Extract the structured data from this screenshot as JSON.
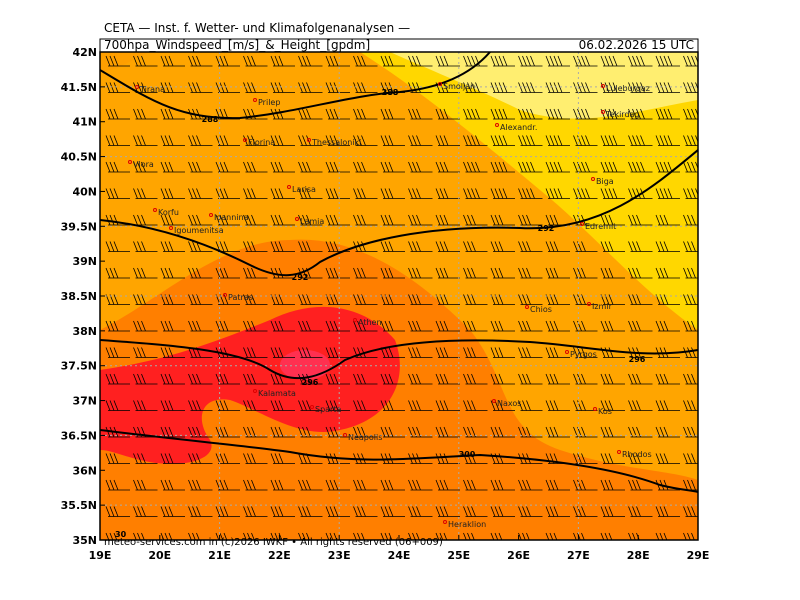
{
  "header": {
    "institute": "CETA — Inst. f. Wetter- und Klimafolgenanalysen —",
    "product": "700hpa_Windspeed_[m/s]_&_Height_[gpdm]",
    "datetime": "06.02.2026 15 UTC"
  },
  "axes": {
    "latitudes": [
      "42N",
      "41.5N",
      "41N",
      "40.5N",
      "40N",
      "39.5N",
      "39N",
      "38.5N",
      "38N",
      "37.5N",
      "37N",
      "36.5N",
      "36N",
      "35.5N",
      "35N"
    ],
    "longitudes": [
      "19E",
      "20E",
      "21E",
      "22E",
      "23E",
      "24E",
      "25E",
      "26E",
      "27E",
      "28E",
      "29E"
    ]
  },
  "contour_labels": [
    "288",
    "288",
    "292",
    "292",
    "296",
    "296",
    "300"
  ],
  "cities": [
    "Tirana",
    "Prilep",
    "Florina",
    "Thessaloniki",
    "Smoljan",
    "Alexandr.",
    "Luleburgaz",
    "Tekirdag",
    "Vlora",
    "Biga",
    "Larisa",
    "Korfu",
    "Ioannina",
    "Igoumenitsa",
    "Lamia",
    "Edremit",
    "Patras",
    "Chios",
    "Izmir",
    "Athen",
    "Pyrgos",
    "Kalamata",
    "Sparta",
    "Naxos",
    "Kos",
    "Neapolis",
    "Rhodos",
    "Heraklion"
  ],
  "footer": {
    "corner": "30",
    "copyright": "meteo-services.com in (c)2026 IWKF • All rights reserved (06+009)"
  }
}
